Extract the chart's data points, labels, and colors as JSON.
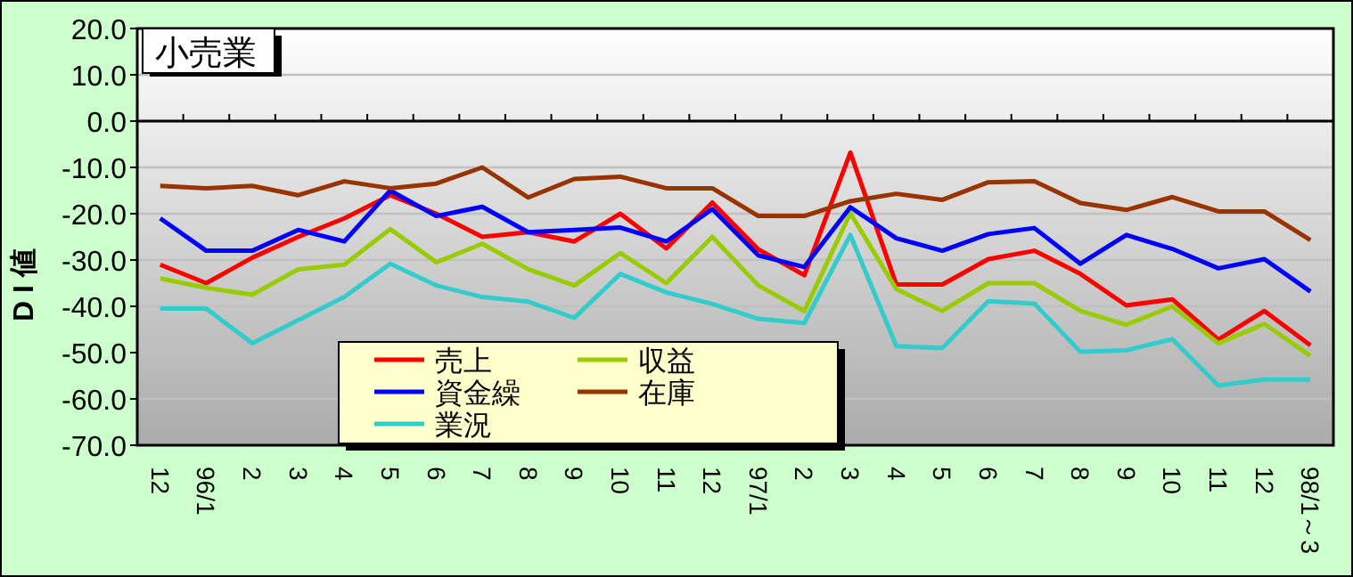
{
  "chart_data": {
    "type": "line",
    "title": "小売業",
    "ylabel": "D I 値",
    "categories": [
      "12",
      "96/1",
      "2",
      "3",
      "4",
      "5",
      "6",
      "7",
      "8",
      "9",
      "10",
      "11",
      "12",
      "97/1",
      "2",
      "3",
      "4",
      "5",
      "6",
      "7",
      "8",
      "9",
      "10",
      "11",
      "12",
      "98/1～3"
    ],
    "series": [
      {
        "name": "売上",
        "color": "#ff0000",
        "values": [
          -31,
          -35,
          -29.5,
          -25,
          -21,
          -16,
          -20,
          -25,
          -24,
          -26,
          -20,
          -27.5,
          -17.6,
          -27.7,
          -33.3,
          -6.8,
          -35.3,
          -35.3,
          -29.8,
          -28,
          -33,
          -39.8,
          -38.5,
          -47.2,
          -41,
          -48.4
        ]
      },
      {
        "name": "収益",
        "color": "#99cc00",
        "values": [
          -34,
          -36,
          -37.5,
          -32,
          -31,
          -23.3,
          -30.5,
          -26.5,
          -32,
          -35.5,
          -28.5,
          -35,
          -25,
          -35.5,
          -41,
          -19.9,
          -36.3,
          -41,
          -35,
          -35,
          -41,
          -44,
          -40,
          -48,
          -43.8,
          -50.7
        ]
      },
      {
        "name": "資金繰",
        "color": "#0000ff",
        "values": [
          -21,
          -28,
          -28,
          -23.5,
          -26,
          -15,
          -20.5,
          -18.5,
          -24,
          -23.5,
          -23,
          -26,
          -19,
          -29,
          -31.5,
          -18.6,
          -25.3,
          -28,
          -24.4,
          -23.1,
          -30.8,
          -24.6,
          -27.6,
          -31.8,
          -29.8,
          -36.8
        ]
      },
      {
        "name": "在庫",
        "color": "#993300",
        "values": [
          -14,
          -14.5,
          -14,
          -16,
          -13,
          -14.5,
          -13.5,
          -10,
          -16.5,
          -12.5,
          -12,
          -14.5,
          -14.5,
          -20.5,
          -20.5,
          -17.3,
          -15.7,
          -17,
          -13.2,
          -13,
          -17.7,
          -19.2,
          -16.4,
          -19.5,
          -19.5,
          -25.7
        ]
      },
      {
        "name": "業況",
        "color": "#33cccc",
        "values": [
          -40.5,
          -40.5,
          -48,
          -43,
          -38,
          -30.8,
          -35.5,
          -38,
          -39,
          -42.5,
          -33,
          -37,
          -39.5,
          -42.7,
          -43.6,
          -24.6,
          -48.6,
          -49,
          -38.9,
          -39.4,
          -49.8,
          -49.5,
          -47.1,
          -57.1,
          -55.8,
          -55.8
        ]
      }
    ],
    "ylim": [
      -70,
      20
    ],
    "yticks": [
      {
        "value": 20,
        "label": "20.0"
      },
      {
        "value": 10,
        "label": "10.0"
      },
      {
        "value": 0,
        "label": "0.0"
      },
      {
        "value": -10,
        "label": "-10.0"
      },
      {
        "value": -20,
        "label": "-20.0"
      },
      {
        "value": -30,
        "label": "-30.0"
      },
      {
        "value": -40,
        "label": "-40.0"
      },
      {
        "value": -50,
        "label": "-50.0"
      },
      {
        "value": -60,
        "label": "-60.0"
      },
      {
        "value": -70,
        "label": "-70.0"
      }
    ],
    "grid": "y",
    "legend": "bottom",
    "marker": "none",
    "line_style": "solid"
  }
}
